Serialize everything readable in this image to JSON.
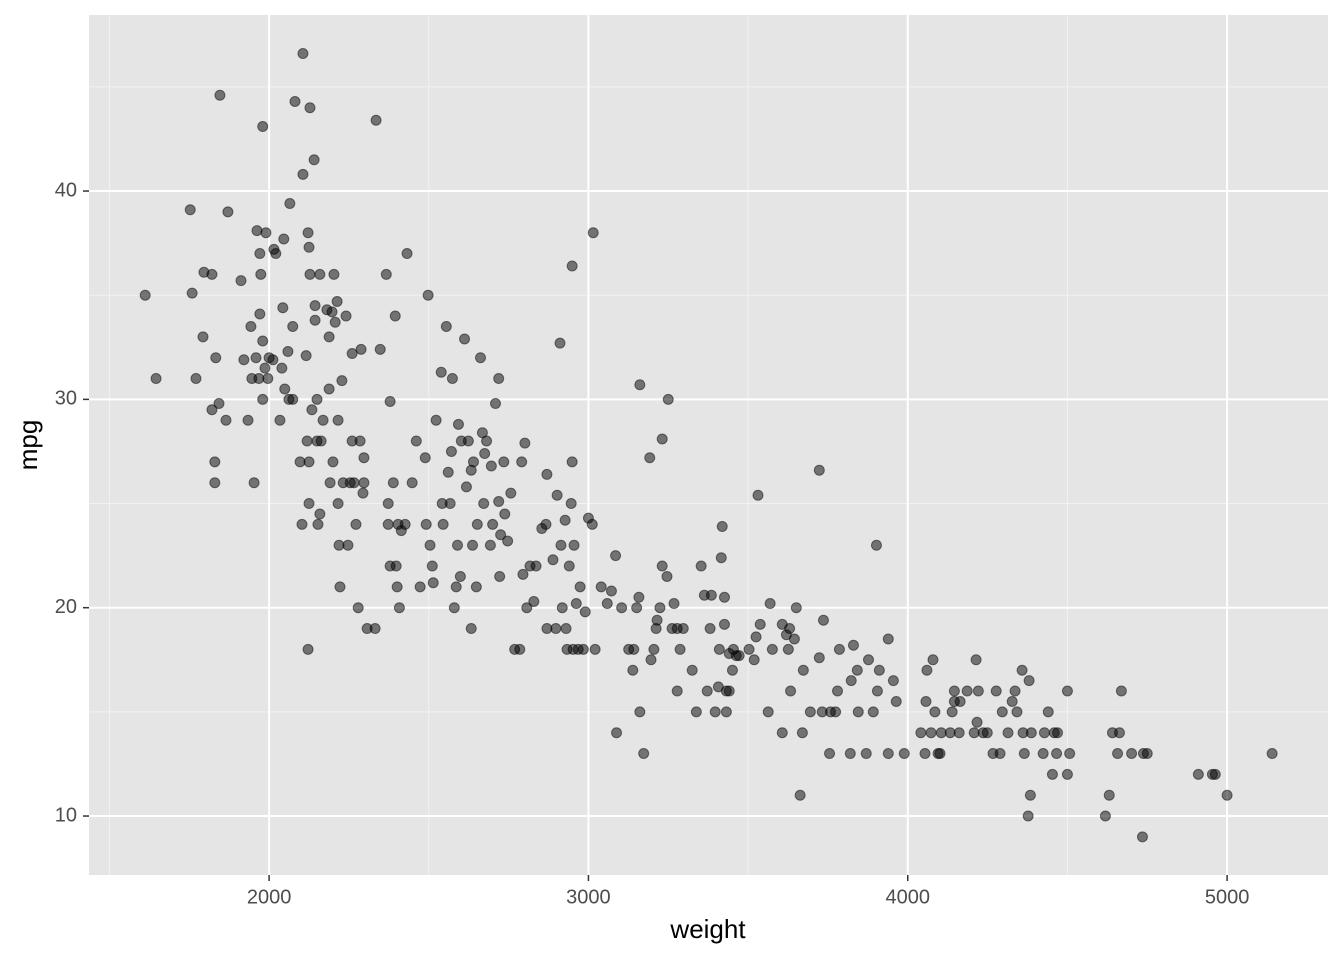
{
  "chart_data": {
    "type": "scatter",
    "x_label": "weight",
    "y_label": "mpg",
    "xlim": [
      1436,
      5316
    ],
    "ylim": [
      7.17,
      48.45
    ],
    "xticks": [
      2000,
      3000,
      4000,
      5000
    ],
    "yticks": [
      10,
      20,
      30,
      40
    ],
    "x_minor_breaks": [
      1500,
      2500,
      3500,
      4500
    ],
    "y_minor_breaks": [
      15,
      25,
      35,
      45
    ],
    "grid": true,
    "color": "#000000",
    "opacity": 0.5,
    "x": [
      1612,
      1646,
      1753,
      1759,
      1771,
      1793,
      1796,
      1821,
      1821,
      1830,
      1830,
      1833,
      1843,
      1846,
      1865,
      1871,
      1912,
      1921,
      1934,
      1943,
      1946,
      1953,
      1959,
      1962,
      1968,
      1971,
      1971,
      1974,
      1980,
      1980,
      1980,
      1987,
      1990,
      1996,
      2000,
      2012,
      2015,
      2021,
      2034,
      2040,
      2043,
      2046,
      2049,
      2059,
      2062,
      2065,
      2074,
      2074,
      2081,
      2097,
      2103,
      2106,
      2106,
      2116,
      2119,
      2122,
      2122,
      2125,
      2125,
      2125,
      2128,
      2128,
      2134,
      2141,
      2144,
      2144,
      2150,
      2150,
      2153,
      2159,
      2159,
      2163,
      2169,
      2181,
      2188,
      2188,
      2191,
      2197,
      2200,
      2203,
      2207,
      2213,
      2216,
      2216,
      2219,
      2222,
      2228,
      2232,
      2241,
      2247,
      2254,
      2260,
      2260,
      2266,
      2272,
      2279,
      2285,
      2288,
      2294,
      2297,
      2297,
      2307,
      2332,
      2335,
      2348,
      2367,
      2373,
      2373,
      2379,
      2379,
      2389,
      2395,
      2398,
      2401,
      2404,
      2408,
      2414,
      2426,
      2432,
      2448,
      2461,
      2473,
      2489,
      2492,
      2498,
      2504,
      2511,
      2514,
      2523,
      2539,
      2542,
      2545,
      2555,
      2561,
      2567,
      2571,
      2574,
      2580,
      2586,
      2590,
      2593,
      2599,
      2602,
      2612,
      2618,
      2624,
      2633,
      2633,
      2637,
      2640,
      2649,
      2652,
      2662,
      2668,
      2672,
      2675,
      2681,
      2693,
      2696,
      2700,
      2709,
      2719,
      2719,
      2722,
      2725,
      2735,
      2738,
      2747,
      2757,
      2769,
      2785,
      2791,
      2795,
      2801,
      2807,
      2817,
      2829,
      2836,
      2854,
      2867,
      2870,
      2870,
      2889,
      2898,
      2902,
      2911,
      2914,
      2918,
      2927,
      2930,
      2933,
      2940,
      2946,
      2949,
      2949,
      2952,
      2955,
      2962,
      2968,
      2974,
      2984,
      2990,
      3000,
      3012,
      3015,
      3021,
      3040,
      3059,
      3072,
      3085,
      3088,
      3104,
      3126,
      3139,
      3142,
      3151,
      3158,
      3161,
      3161,
      3173,
      3192,
      3196,
      3205,
      3212,
      3215,
      3224,
      3231,
      3231,
      3246,
      3250,
      3262,
      3268,
      3278,
      3278,
      3287,
      3297,
      3325,
      3338,
      3353,
      3363,
      3372,
      3381,
      3385,
      3397,
      3407,
      3410,
      3416,
      3419,
      3426,
      3426,
      3432,
      3432,
      3441,
      3441,
      3451,
      3454,
      3463,
      3472,
      3503,
      3519,
      3525,
      3531,
      3538,
      3563,
      3569,
      3576,
      3607,
      3607,
      3620,
      3626,
      3630,
      3633,
      3645,
      3651,
      3663,
      3670,
      3673,
      3695,
      3723,
      3723,
      3732,
      3736,
      3755,
      3758,
      3774,
      3780,
      3786,
      3820,
      3823,
      3830,
      3842,
      3845,
      3870,
      3877,
      3892,
      3902,
      3905,
      3911,
      3939,
      3939,
      3955,
      3964,
      3989,
      4041,
      4054,
      4057,
      4060,
      4073,
      4079,
      4085,
      4095,
      4101,
      4105,
      4133,
      4139,
      4146,
      4146,
      4161,
      4164,
      4186,
      4208,
      4214,
      4217,
      4221,
      4236,
      4249,
      4267,
      4277,
      4289,
      4296,
      4314,
      4327,
      4336,
      4342,
      4358,
      4361,
      4365,
      4377,
      4380,
      4384,
      4387,
      4424,
      4428,
      4440,
      4453,
      4459,
      4466,
      4469,
      4500,
      4500,
      4507,
      4619,
      4631,
      4641,
      4657,
      4663,
      4669,
      4701,
      4735,
      4738,
      4750,
      4910,
      4954,
      4963,
      5000,
      5141
    ],
    "y": [
      35,
      31,
      39.1,
      35.1,
      31,
      33,
      36.1,
      36,
      29.5,
      27,
      26,
      32,
      29.8,
      44.6,
      29,
      39,
      35.7,
      31.9,
      29,
      33.5,
      31,
      26,
      32,
      38.1,
      31,
      34.1,
      37,
      36,
      32.8,
      30,
      43.1,
      31.5,
      38,
      31,
      32,
      31.9,
      37.2,
      37,
      29,
      31.5,
      34.4,
      37.7,
      30.5,
      32.3,
      30,
      39.4,
      33.5,
      30,
      44.3,
      27,
      24,
      40.8,
      46.6,
      32.1,
      28,
      18,
      38,
      27,
      25,
      37.3,
      44,
      36,
      29.5,
      41.5,
      33.8,
      34.5,
      30,
      28,
      24,
      36,
      24.5,
      28,
      29,
      34.3,
      30.5,
      33,
      26,
      34.2,
      27,
      36,
      33.7,
      34.7,
      29,
      25,
      23,
      21,
      30.9,
      26,
      34,
      23,
      26,
      32.2,
      28,
      26,
      24,
      20,
      28,
      32.4,
      25.5,
      26,
      27.2,
      19,
      19,
      43.4,
      32.4,
      36,
      24,
      25,
      29.9,
      22,
      26,
      34,
      22,
      21,
      24,
      20,
      23.7,
      24,
      37,
      26,
      28,
      21,
      27.2,
      24,
      35,
      23,
      22,
      21.2,
      29,
      31.3,
      25,
      24,
      33.5,
      26.5,
      25,
      27.5,
      31,
      20,
      21,
      23,
      28.8,
      21.5,
      28,
      32.9,
      25.8,
      28,
      19,
      26.6,
      23,
      27,
      21,
      24,
      32,
      28.4,
      25,
      27.4,
      28,
      23,
      26.8,
      24,
      29.8,
      31,
      25.1,
      21.5,
      23.5,
      27,
      24.5,
      23.2,
      25.5,
      18,
      18,
      27,
      21.6,
      27.9,
      20,
      22,
      20.3,
      22,
      23.8,
      24,
      19,
      26.4,
      22.3,
      19,
      25.4,
      32.7,
      23,
      20,
      24.2,
      19,
      18,
      22,
      25,
      36.4,
      27,
      18,
      23,
      20.2,
      18,
      21,
      18,
      19.8,
      24.3,
      24,
      38,
      18,
      21,
      20.2,
      20.8,
      22.5,
      14,
      20,
      18,
      17,
      18,
      20,
      20.5,
      30.7,
      15,
      13,
      27.2,
      17.5,
      18,
      19,
      19.4,
      20,
      28.1,
      22,
      21.5,
      30,
      19,
      20.2,
      19,
      16,
      18,
      19,
      17,
      15,
      22,
      20.6,
      16,
      19,
      20.6,
      15,
      16.2,
      18,
      22.4,
      23.9,
      19.2,
      20.5,
      16,
      15,
      16,
      17.8,
      17,
      18,
      17.7,
      17.7,
      18,
      17.5,
      18.6,
      25.4,
      19.2,
      15,
      20.2,
      18,
      14,
      19.2,
      18.7,
      18,
      19,
      16,
      18.5,
      20,
      11,
      14,
      17,
      15,
      26.6,
      17.6,
      15,
      19.4,
      13,
      15,
      15,
      16,
      18,
      13,
      16.5,
      18.2,
      17,
      15,
      13,
      17.5,
      15,
      23,
      16,
      17,
      13,
      18.5,
      16.5,
      15.5,
      13,
      14,
      13,
      15.5,
      17,
      14,
      17.5,
      15,
      13,
      13,
      14,
      14,
      15,
      16,
      15.5,
      14,
      15.5,
      16,
      14,
      17.5,
      14.5,
      16,
      14,
      14,
      13,
      16,
      13,
      15,
      14,
      15.5,
      16,
      15,
      17,
      14,
      13,
      10,
      16.5,
      11,
      14,
      13,
      14,
      15,
      12,
      14,
      13,
      14,
      16,
      12,
      13,
      10,
      11,
      14,
      13,
      14,
      16,
      13,
      9,
      13,
      13,
      12,
      12,
      12,
      11,
      13
    ]
  }
}
